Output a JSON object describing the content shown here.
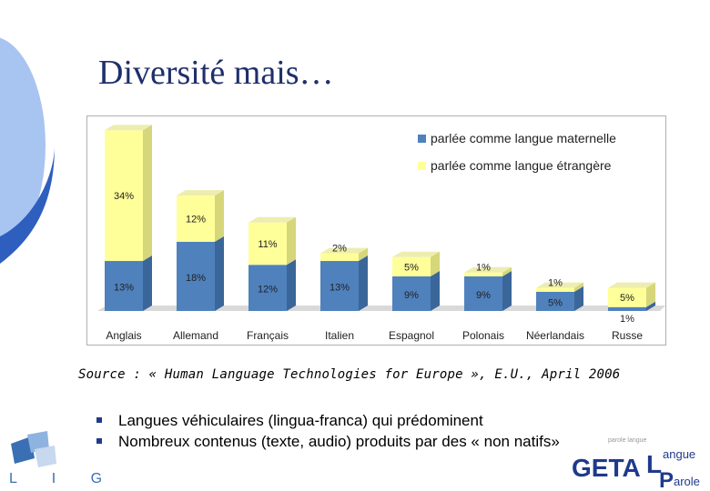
{
  "slide": {
    "title": "Diversité mais…",
    "source": "Source : « Human Language Technologies for Europe », E.U., April 2006",
    "bullets": [
      "Langues véhiculaires (lingua-franca) qui prédominent",
      "Nombreux contenus (texte, audio) produits par des « non natifs»"
    ],
    "logo_lig": "L I G",
    "logo_geta": {
      "geta": "GETA",
      "l": "L",
      "p": "P",
      "angue": "angue",
      "arole": "arole",
      "small_words": "parole langue"
    }
  },
  "colors": {
    "title": "#1f2f6b",
    "native": "#4f81bd",
    "foreign": "#ffff99",
    "deco_light": "#a8c4f0",
    "deco_dark": "#2e5fbf"
  },
  "chart_data": {
    "type": "bar",
    "stacked": true,
    "categories": [
      "Anglais",
      "Allemand",
      "Français",
      "Italien",
      "Espagnol",
      "Polonais",
      "Néerlandais",
      "Russe"
    ],
    "series": [
      {
        "name": "parlée comme langue maternelle",
        "values": [
          13,
          18,
          12,
          13,
          9,
          9,
          5,
          1
        ],
        "labels": [
          "13%",
          "18%",
          "12%",
          "13%",
          "9%",
          "9%",
          "5%",
          "1%"
        ]
      },
      {
        "name": "parlée comme langue étrangère",
        "values": [
          34,
          12,
          11,
          2,
          5,
          1,
          1,
          5
        ],
        "labels": [
          "34%",
          "12%",
          "11%",
          "2%",
          "5%",
          "1%",
          "1%",
          "5%"
        ]
      }
    ],
    "legend": "top-right",
    "ylim": [
      0,
      48
    ]
  }
}
